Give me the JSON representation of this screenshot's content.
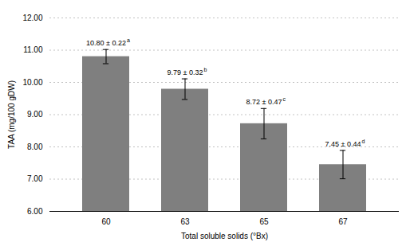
{
  "chart_data": {
    "type": "bar",
    "categories": [
      "60",
      "63",
      "65",
      "67"
    ],
    "values": [
      10.8,
      9.79,
      8.72,
      7.45
    ],
    "errors": [
      0.22,
      0.32,
      0.47,
      0.44
    ],
    "annotations": [
      {
        "text": "10.80 ± 0.22",
        "superscript": "a"
      },
      {
        "text": "9.79 ± 0.32",
        "superscript": "b"
      },
      {
        "text": "8.72 ± 0.47",
        "superscript": "c"
      },
      {
        "text": "7.45 ± 0.44",
        "superscript": "d"
      }
    ],
    "color": "#7f7f7f",
    "xlabel": "Total soluble solids (°Bx)",
    "ylabel": "TAA (mg/100 gDW)",
    "ylim": [
      6.0,
      12.0
    ],
    "yticks": [
      {
        "value": 6,
        "label": "6.00"
      },
      {
        "value": 7,
        "label": "7.00"
      },
      {
        "value": 8,
        "label": "8.00"
      },
      {
        "value": 9,
        "label": "9.00"
      },
      {
        "value": 10,
        "label": "10.00"
      },
      {
        "value": 11,
        "label": "11.00"
      },
      {
        "value": 12,
        "label": "12.00"
      }
    ],
    "grid": true
  }
}
